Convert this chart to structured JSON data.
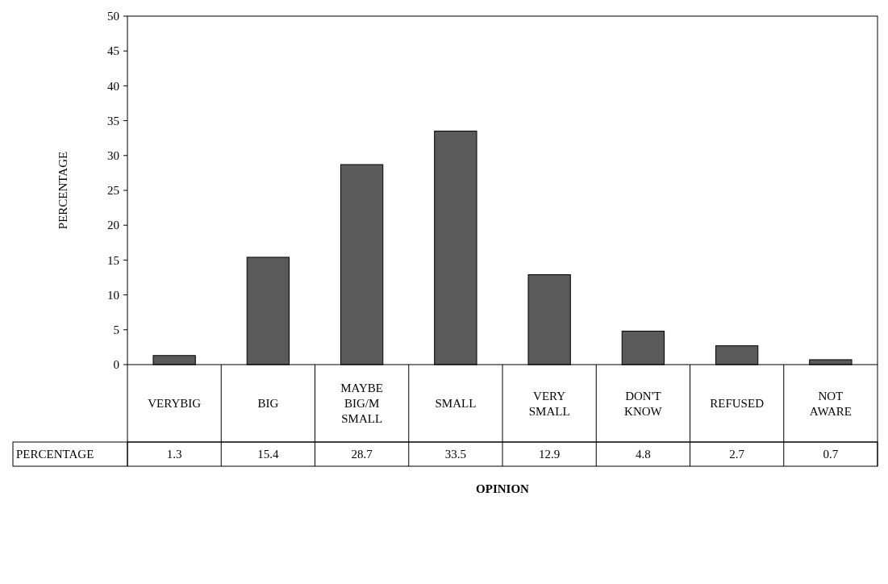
{
  "chart_data": {
    "type": "bar",
    "xlabel": "OPINION",
    "ylabel": "PERCENTAGE",
    "categories": [
      "VERYBIG",
      "BIG",
      "MAYBE BIG/M SMALL",
      "SMALL",
      "VERY SMALL",
      "DON'T KNOW",
      "REFUSED",
      "NOT AWARE"
    ],
    "series": [
      {
        "name": "PERCENTAGE",
        "color": "#5a5a5a",
        "values": [
          1.3,
          15.4,
          28.7,
          33.5,
          12.9,
          4.8,
          2.7,
          0.7
        ]
      }
    ],
    "ylim": [
      0,
      50
    ],
    "yticks": [
      0,
      5,
      10,
      15,
      20,
      25,
      30,
      35,
      40,
      45,
      50
    ],
    "data_labels": true,
    "grid": false
  }
}
